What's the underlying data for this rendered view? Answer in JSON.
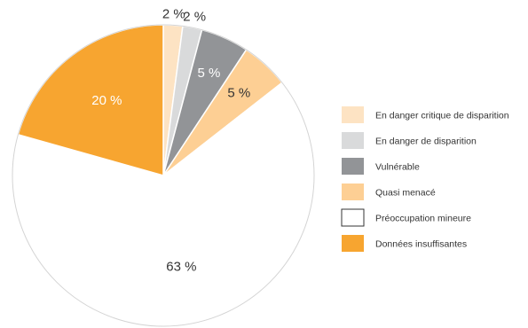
{
  "chart_data": {
    "type": "pie",
    "title": "",
    "unit": "%",
    "slices": [
      {
        "label": "En danger critique de disparition",
        "value": 2,
        "display": "2 %",
        "color": "#FDE3C3",
        "label_color": "#333333",
        "label_outside": true
      },
      {
        "label": "En danger de disparition",
        "value": 2,
        "display": "2 %",
        "color": "#D9DADB",
        "label_color": "#333333",
        "label_outside": true
      },
      {
        "label": "Vulnérable",
        "value": 5,
        "display": "5 %",
        "color": "#929497",
        "label_color": "#ffffff",
        "label_outside": false
      },
      {
        "label": "Quasi menacé",
        "value": 5,
        "display": "5 %",
        "color": "#FDCF94",
        "label_color": "#333333",
        "label_outside": false
      },
      {
        "label": "Préoccupation mineure",
        "value": 63,
        "display": "63 %",
        "color": "#FFFFFF",
        "label_color": "#333333",
        "label_outside": false
      },
      {
        "label": "Données insuffisantes",
        "value": 20,
        "display": "20 %",
        "color": "#F7A530",
        "label_color": "#ffffff",
        "label_outside": false
      }
    ],
    "legend_position": "right",
    "border_color": "#D4D4D4"
  }
}
